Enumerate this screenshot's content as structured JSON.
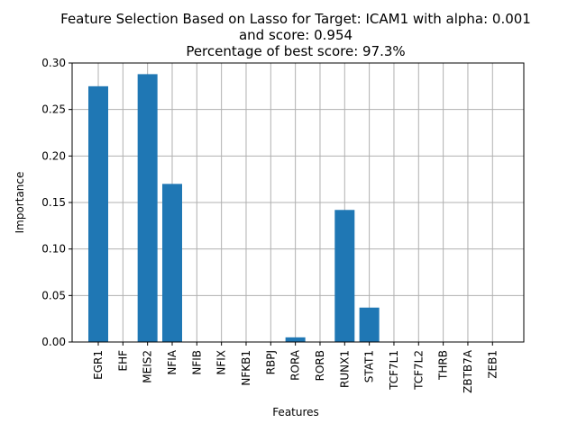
{
  "chart_data": {
    "type": "bar",
    "title_lines": [
      "Feature Selection Based on Lasso for Target: ICAM1 with alpha: 0.001",
      "and score: 0.954",
      "Percentage of best score: 97.3%"
    ],
    "xlabel": "Features",
    "ylabel": "Importance",
    "categories": [
      "EGR1",
      "EHF",
      "MEIS2",
      "NFIA",
      "NFIB",
      "NFIX",
      "NFKB1",
      "RBPJ",
      "RORA",
      "RORB",
      "RUNX1",
      "STAT1",
      "TCF7L1",
      "TCF7L2",
      "THRB",
      "ZBTB7A",
      "ZEB1"
    ],
    "values": [
      0.275,
      0.0,
      0.288,
      0.17,
      0.0,
      0.0,
      0.0,
      0.0,
      0.005,
      0.0,
      0.142,
      0.037,
      0.0,
      0.0,
      0.0,
      0.0,
      0.0
    ],
    "yticks": [
      "0.00",
      "0.05",
      "0.10",
      "0.15",
      "0.20",
      "0.25",
      "0.30"
    ],
    "ylim": [
      0,
      0.3
    ],
    "grid": true,
    "bar_color": "#1f77b4"
  }
}
